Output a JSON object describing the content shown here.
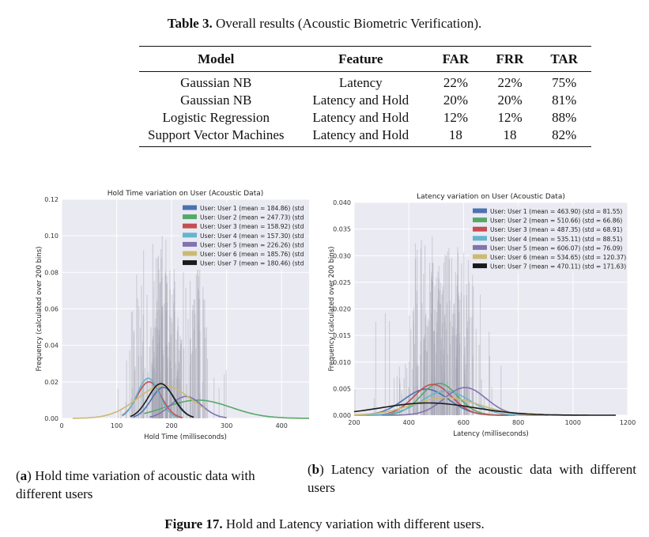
{
  "table": {
    "caption_label": "Table 3.",
    "caption_text": "Overall results (Acoustic Biometric Verification).",
    "headers": [
      "Model",
      "Feature",
      "FAR",
      "FRR",
      "TAR"
    ],
    "rows": [
      [
        "Gaussian NB",
        "Latency",
        "22%",
        "22%",
        "75%"
      ],
      [
        "Gaussian NB",
        "Latency and Hold",
        "20%",
        "20%",
        "81%"
      ],
      [
        "Logistic Regression",
        "Latency and Hold",
        "12%",
        "12%",
        "88%"
      ],
      [
        "Support Vector Machines",
        "Latency and Hold",
        "18",
        "18",
        "82%"
      ]
    ]
  },
  "subcaptions": {
    "a_letter": "a",
    "a_text": " Hold time variation of acoustic data with different users",
    "b_letter": "b",
    "b_text": " Latency variation of the acoustic data with different users"
  },
  "figure_caption": {
    "label": "Figure 17.",
    "text": "Hold and Latency variation with different users."
  },
  "chart_data": [
    {
      "type": "line",
      "title": "Hold Time variation on User (Acoustic Data)",
      "xlabel": "Hold Time (milliseconds)",
      "ylabel": "Frequency (calculated over 200 bins)",
      "xlim": [
        0,
        450
      ],
      "ylim": [
        0,
        0.12
      ],
      "xticks": [
        0,
        100,
        200,
        300,
        400
      ],
      "yticks": [
        0.0,
        0.02,
        0.04,
        0.06,
        0.08,
        0.1,
        0.12
      ],
      "xtick_labels": [
        "0",
        "100",
        "200",
        "300",
        "400"
      ],
      "ytick_labels": [
        "0.00",
        "0.02",
        "0.04",
        "0.06",
        "0.08",
        "0.10",
        "0.12"
      ],
      "grid": true,
      "legend_position": "top-right",
      "series": [
        {
          "name": "User: User 1",
          "legend": "User: User 1    (mean =  184.86) (std",
          "color": "#4c72b0",
          "mean": 184.86,
          "peak": 0.017,
          "x_range": [
            130,
            240
          ]
        },
        {
          "name": "User: User 2",
          "legend": "User: User 2    (mean =  247.73) (std",
          "color": "#55a868",
          "mean": 247.73,
          "peak": 0.01,
          "x_range": [
            150,
            450
          ]
        },
        {
          "name": "User: User 3",
          "legend": "User: User 3    (mean =  158.92) (std",
          "color": "#c44e52",
          "mean": 158.92,
          "peak": 0.02,
          "x_range": [
            110,
            220
          ]
        },
        {
          "name": "User: User 4",
          "legend": "User: User 4    (mean =  157.30) (std",
          "color": "#64b5cd",
          "mean": 157.3,
          "peak": 0.022,
          "x_range": [
            110,
            210
          ]
        },
        {
          "name": "User: User 5",
          "legend": "User: User 5    (mean =  226.26) (std",
          "color": "#8172b2",
          "mean": 226.26,
          "peak": 0.012,
          "x_range": [
            160,
            300
          ]
        },
        {
          "name": "User: User 6",
          "legend": "User: User 6    (mean =  185.76) (std",
          "color": "#ccb974",
          "mean": 185.76,
          "peak": 0.018,
          "x_range": [
            20,
            260
          ]
        },
        {
          "name": "User: User 7",
          "legend": "User: User 7    (mean =  180.46) (std",
          "color": "#1a1a1a",
          "mean": 180.46,
          "peak": 0.019,
          "x_range": [
            125,
            240
          ]
        }
      ]
    },
    {
      "type": "line",
      "title": "Latency variation on User (Acoustic Data)",
      "xlabel": "Latency (milliseconds)",
      "ylabel": "Frequency (calculated over 200 bins)",
      "xlim": [
        200,
        1200
      ],
      "ylim": [
        0,
        0.04
      ],
      "xticks": [
        200,
        400,
        600,
        800,
        1000,
        1200
      ],
      "yticks": [
        0.0,
        0.005,
        0.01,
        0.015,
        0.02,
        0.025,
        0.03,
        0.035,
        0.04
      ],
      "xtick_labels": [
        "200",
        "400",
        "600",
        "800",
        "1000",
        "1200"
      ],
      "ytick_labels": [
        "0.000",
        "0.005",
        "0.010",
        "0.015",
        "0.020",
        "0.025",
        "0.030",
        "0.035",
        "0.040"
      ],
      "grid": true,
      "legend_position": "top-right",
      "series": [
        {
          "name": "User: User 1",
          "legend": "User: User 1    (mean =   463.90) (std =   81.55)",
          "color": "#4c72b0",
          "mean": 463.9,
          "std": 81.55,
          "peak": 0.0049
        },
        {
          "name": "User: User 2",
          "legend": "User: User 2    (mean =   510.66) (std =   66.86)",
          "color": "#55a868",
          "mean": 510.66,
          "std": 66.86,
          "peak": 0.006
        },
        {
          "name": "User: User 3",
          "legend": "User: User 3    (mean =   487.35) (std =   68.91)",
          "color": "#c44e52",
          "mean": 487.35,
          "std": 68.91,
          "peak": 0.0058
        },
        {
          "name": "User: User 4",
          "legend": "User: User 4    (mean =   535.11) (std =   88.51)",
          "color": "#64b5cd",
          "mean": 535.11,
          "std": 88.51,
          "peak": 0.0045
        },
        {
          "name": "User: User 5",
          "legend": "User: User 5    (mean =   606.07) (std =   76.09)",
          "color": "#8172b2",
          "mean": 606.07,
          "std": 76.09,
          "peak": 0.0052
        },
        {
          "name": "User: User 6",
          "legend": "User: User 6    (mean =   534.65) (std = 120.37)",
          "color": "#ccb974",
          "mean": 534.65,
          "std": 120.37,
          "peak": 0.0033
        },
        {
          "name": "User: User 7",
          "legend": "User: User 7    (mean =   470.11) (std = 171.63)",
          "color": "#1a1a1a",
          "mean": 470.11,
          "std": 171.63,
          "peak": 0.0023
        }
      ]
    }
  ]
}
